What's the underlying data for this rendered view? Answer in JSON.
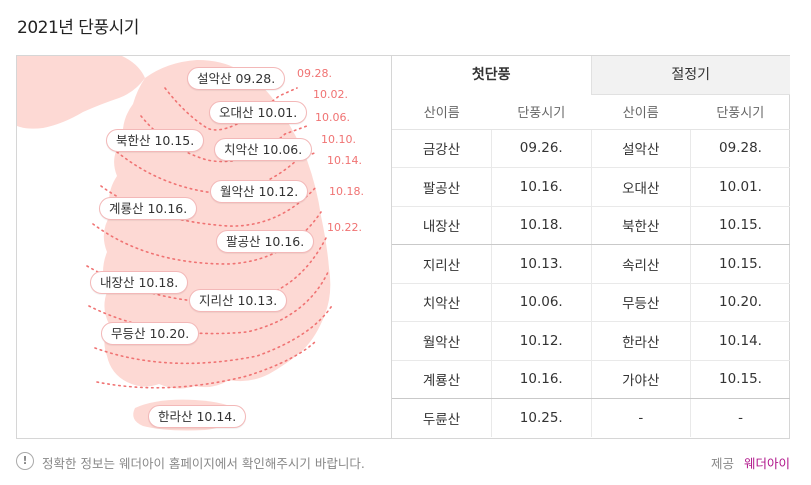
{
  "title": "2021년 단풍시기",
  "tabs": [
    "첫단풍",
    "절정기"
  ],
  "table": {
    "headers": [
      "산이름",
      "단풍시기",
      "산이름",
      "단풍시기"
    ],
    "rows": [
      [
        "금강산",
        "09.26.",
        "설악산",
        "09.28."
      ],
      [
        "팔공산",
        "10.16.",
        "오대산",
        "10.01."
      ],
      [
        "내장산",
        "10.18.",
        "북한산",
        "10.15."
      ],
      [
        "지리산",
        "10.13.",
        "속리산",
        "10.15."
      ],
      [
        "치악산",
        "10.06.",
        "무등산",
        "10.20."
      ],
      [
        "월악산",
        "10.12.",
        "한라산",
        "10.14."
      ],
      [
        "계룡산",
        "10.16.",
        "가야산",
        "10.15."
      ],
      [
        "두륜산",
        "10.25.",
        "-",
        "-"
      ]
    ]
  },
  "map": {
    "pills": [
      {
        "label": "설악산 09.28."
      },
      {
        "label": "오대산 10.01."
      },
      {
        "label": "북한산 10.15."
      },
      {
        "label": "치악산 10.06."
      },
      {
        "label": "월악산 10.12."
      },
      {
        "label": "계룡산 10.16."
      },
      {
        "label": "팔공산 10.16."
      },
      {
        "label": "내장산 10.18."
      },
      {
        "label": "지리산 10.13."
      },
      {
        "label": "무등산 10.20."
      },
      {
        "label": "한라산 10.14."
      }
    ],
    "date_lines": [
      "09.28.",
      "10.02.",
      "10.06.",
      "10.10.",
      "10.14.",
      "10.18.",
      "10.22."
    ]
  },
  "footer": {
    "notice_icon": "!",
    "notice": "정확한 정보는 웨더아이 홈페이지에서 확인해주시기 바랍니다.",
    "provider_label": "제공",
    "provider_name": "웨더아이"
  },
  "colors": {
    "map_fill": "#fdd9d4",
    "accent": "#f07373",
    "provider": "#b0148a"
  }
}
